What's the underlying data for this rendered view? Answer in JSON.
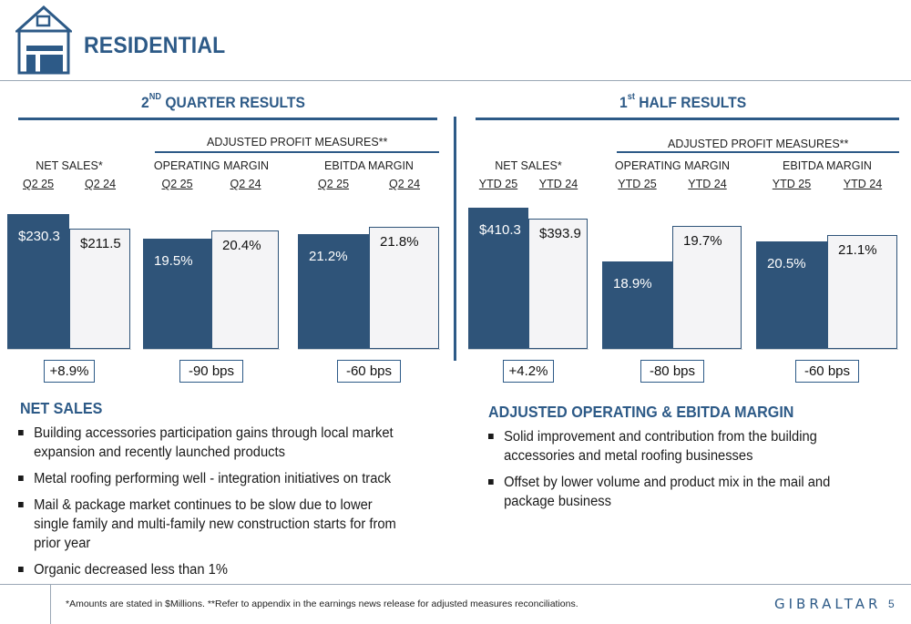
{
  "header": {
    "title": "RESIDENTIAL",
    "icon": "house-garage-icon"
  },
  "left": {
    "section_title": "QUARTER RESULTS",
    "section_prefix": "2",
    "section_sup": "ND",
    "group_label": "ADJUSTED PROFIT MEASURES**"
  },
  "right": {
    "section_title": "HALF RESULTS",
    "section_prefix": "1",
    "section_sup": "st",
    "group_label": "ADJUSTED PROFIT MEASURES**"
  },
  "chart_data": [
    {
      "type": "bar",
      "title": "NET SALES*",
      "categories": [
        "Q2 25",
        "Q2 24"
      ],
      "values": [
        230.3,
        211.5
      ],
      "labels": [
        "$230.3",
        "$211.5"
      ],
      "change": "+8.9%"
    },
    {
      "type": "bar",
      "title": "OPERATING MARGIN",
      "categories": [
        "Q2 25",
        "Q2 24"
      ],
      "values": [
        19.5,
        20.4
      ],
      "labels": [
        "19.5%",
        "20.4%"
      ],
      "change": "-90 bps"
    },
    {
      "type": "bar",
      "title": "EBITDA MARGIN",
      "categories": [
        "Q2 25",
        "Q2 24"
      ],
      "values": [
        21.2,
        21.8
      ],
      "labels": [
        "21.2%",
        "21.8%"
      ],
      "change": "-60 bps"
    },
    {
      "type": "bar",
      "title": "NET SALES*",
      "categories": [
        "YTD 25",
        "YTD 24"
      ],
      "values": [
        410.3,
        393.9
      ],
      "labels": [
        "$410.3",
        "$393.9"
      ],
      "change": "+4.2%"
    },
    {
      "type": "bar",
      "title": "OPERATING MARGIN",
      "categories": [
        "YTD 25",
        "YTD 24"
      ],
      "values": [
        18.9,
        19.7
      ],
      "labels": [
        "18.9%",
        "19.7%"
      ],
      "change": "-80 bps"
    },
    {
      "type": "bar",
      "title": "EBITDA MARGIN",
      "categories": [
        "YTD 25",
        "YTD 24"
      ],
      "values": [
        20.5,
        21.1
      ],
      "labels": [
        "20.5%",
        "21.1%"
      ],
      "change": "-60 bps"
    }
  ],
  "net_sales": {
    "heading": "NET SALES",
    "bullets": [
      "Building accessories participation gains through local market expansion and recently launched products",
      "Metal roofing performing well - integration initiatives on track",
      "Mail & package market continues to be slow due to lower single family and multi-family new construction starts for from prior year",
      "Organic decreased less than 1%"
    ]
  },
  "margin": {
    "heading": "ADJUSTED OPERATING & EBITDA MARGIN",
    "bullets": [
      "Solid improvement and contribution from the building accessories and metal roofing businesses",
      "Offset by lower volume and product mix in the mail and package business"
    ]
  },
  "footer": {
    "note": "*Amounts are stated in $Millions.  **Refer to appendix in the earnings news release for adjusted measures reconciliations.",
    "brand": "GIBRALTAR",
    "page": "5"
  },
  "colors": {
    "brand_blue": "#2d5a87",
    "bar_current": "#2f5479",
    "bar_prior": "#f4f4f6"
  }
}
